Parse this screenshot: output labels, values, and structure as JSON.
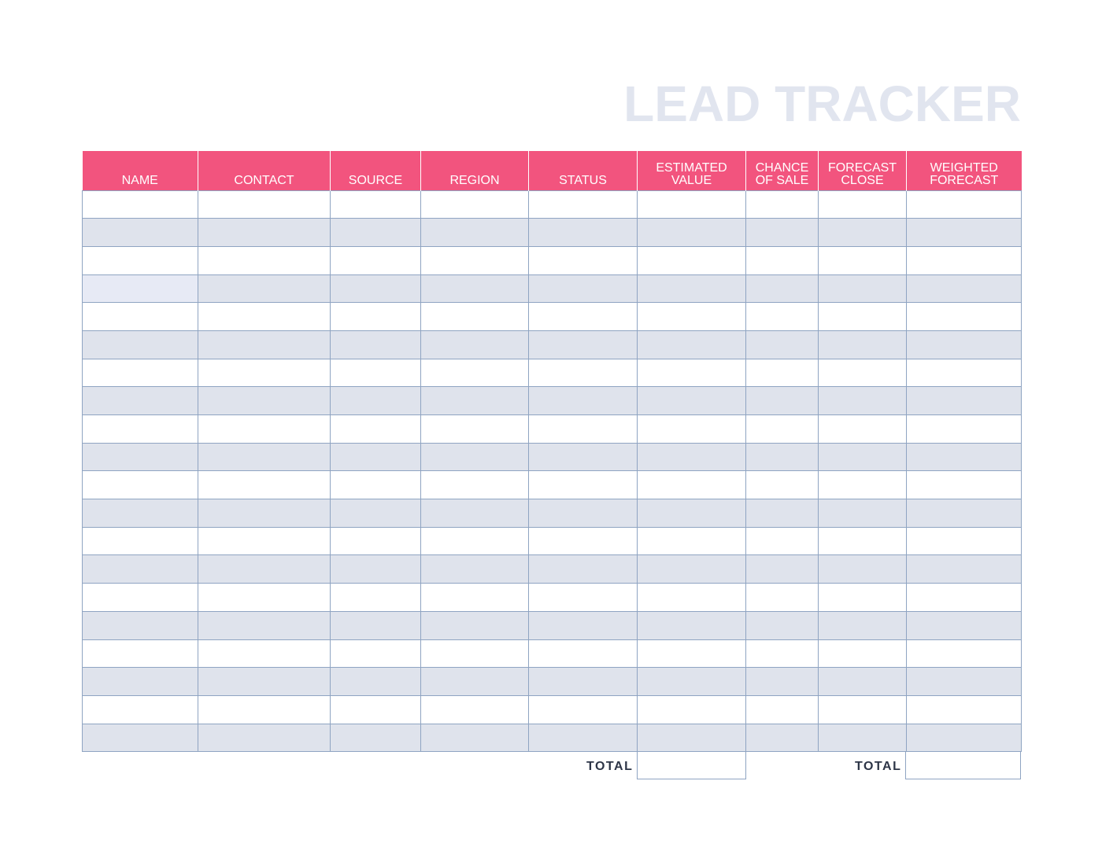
{
  "document": {
    "title": "LEAD TRACKER"
  },
  "table": {
    "headers": [
      {
        "line1": "NAME",
        "line2": ""
      },
      {
        "line1": "CONTACT",
        "line2": ""
      },
      {
        "line1": "SOURCE",
        "line2": ""
      },
      {
        "line1": "REGION",
        "line2": ""
      },
      {
        "line1": "STATUS",
        "line2": ""
      },
      {
        "line1": "ESTIMATED",
        "line2": "VALUE"
      },
      {
        "line1": "CHANCE",
        "line2": "OF SALE"
      },
      {
        "line1": "FORECAST",
        "line2": "CLOSE"
      },
      {
        "line1": "WEIGHTED",
        "line2": "FORECAST"
      }
    ],
    "rows": [
      [
        "",
        "",
        "",
        "",
        "",
        "",
        "",
        "",
        ""
      ],
      [
        "",
        "",
        "",
        "",
        "",
        "",
        "",
        "",
        ""
      ],
      [
        "",
        "",
        "",
        "",
        "",
        "",
        "",
        "",
        ""
      ],
      [
        "",
        "",
        "",
        "",
        "",
        "",
        "",
        "",
        ""
      ],
      [
        "",
        "",
        "",
        "",
        "",
        "",
        "",
        "",
        ""
      ],
      [
        "",
        "",
        "",
        "",
        "",
        "",
        "",
        "",
        ""
      ],
      [
        "",
        "",
        "",
        "",
        "",
        "",
        "",
        "",
        ""
      ],
      [
        "",
        "",
        "",
        "",
        "",
        "",
        "",
        "",
        ""
      ],
      [
        "",
        "",
        "",
        "",
        "",
        "",
        "",
        "",
        ""
      ],
      [
        "",
        "",
        "",
        "",
        "",
        "",
        "",
        "",
        ""
      ],
      [
        "",
        "",
        "",
        "",
        "",
        "",
        "",
        "",
        ""
      ],
      [
        "",
        "",
        "",
        "",
        "",
        "",
        "",
        "",
        ""
      ],
      [
        "",
        "",
        "",
        "",
        "",
        "",
        "",
        "",
        ""
      ],
      [
        "",
        "",
        "",
        "",
        "",
        "",
        "",
        "",
        ""
      ],
      [
        "",
        "",
        "",
        "",
        "",
        "",
        "",
        "",
        ""
      ],
      [
        "",
        "",
        "",
        "",
        "",
        "",
        "",
        "",
        ""
      ],
      [
        "",
        "",
        "",
        "",
        "",
        "",
        "",
        "",
        ""
      ],
      [
        "",
        "",
        "",
        "",
        "",
        "",
        "",
        "",
        ""
      ],
      [
        "",
        "",
        "",
        "",
        "",
        "",
        "",
        "",
        ""
      ],
      [
        "",
        "",
        "",
        "",
        "",
        "",
        "",
        "",
        ""
      ]
    ]
  },
  "totals": {
    "estimated_label": "TOTAL",
    "estimated_value": "",
    "weighted_label": "TOTAL",
    "weighted_value": ""
  },
  "colors": {
    "header_background": "#f2547e",
    "header_text": "#ffffff",
    "title_text": "#e1e5ef",
    "row_alt_background": "#dfe3ec",
    "grid_line": "#8fa4c2",
    "total_text": "#2d3547"
  }
}
